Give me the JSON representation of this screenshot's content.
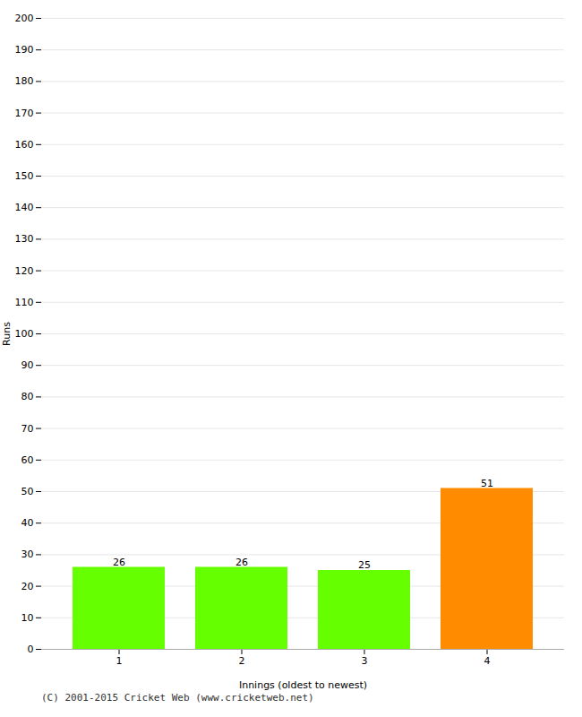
{
  "chart_data": {
    "type": "bar",
    "categories": [
      "1",
      "2",
      "3",
      "4"
    ],
    "values": [
      26,
      26,
      25,
      51
    ],
    "colors": [
      "#66ff00",
      "#66ff00",
      "#66ff00",
      "#ff8c00"
    ],
    "xlabel": "Innings (oldest to newest)",
    "ylabel": "Runs",
    "ylim": [
      0,
      200
    ],
    "yticks": [
      0,
      10,
      20,
      30,
      40,
      50,
      60,
      70,
      80,
      90,
      100,
      110,
      120,
      130,
      140,
      150,
      160,
      170,
      180,
      190,
      200
    ],
    "grid": true,
    "data_labels": true,
    "annotations": [
      "(C) 2001-2015 Cricket Web (www.cricketweb.net)"
    ]
  }
}
